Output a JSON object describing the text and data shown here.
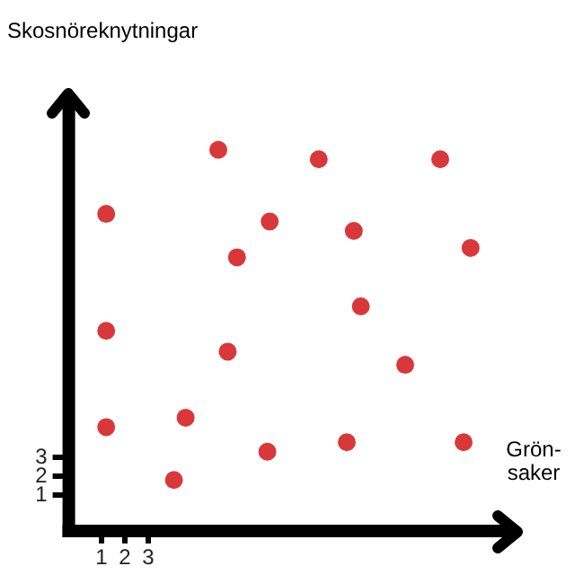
{
  "chart_data": {
    "type": "scatter",
    "xlabel": "Grön-saker",
    "ylabel": "Skosnöreknytningar",
    "xlim": [
      -0.4,
      18.8
    ],
    "ylim": [
      -0.9,
      22.3
    ],
    "xticks": [
      1,
      2,
      3
    ],
    "yticks": [
      1,
      2,
      3
    ],
    "grid": false,
    "legend": false,
    "marker": "circle",
    "series": [
      {
        "color": "#d9383a",
        "x": [
          6.0,
          10.3,
          15.5,
          1.2,
          8.2,
          11.8,
          16.8,
          6.8,
          1.2,
          12.1,
          6.4,
          14.0,
          1.2,
          4.6,
          8.1,
          11.5,
          16.5,
          4.1
        ],
        "values": [
          19.3,
          18.8,
          18.8,
          15.9,
          15.5,
          15.0,
          14.1,
          13.6,
          9.7,
          11.0,
          8.6,
          7.9,
          4.6,
          5.1,
          3.3,
          3.8,
          3.8,
          1.8
        ]
      }
    ]
  }
}
